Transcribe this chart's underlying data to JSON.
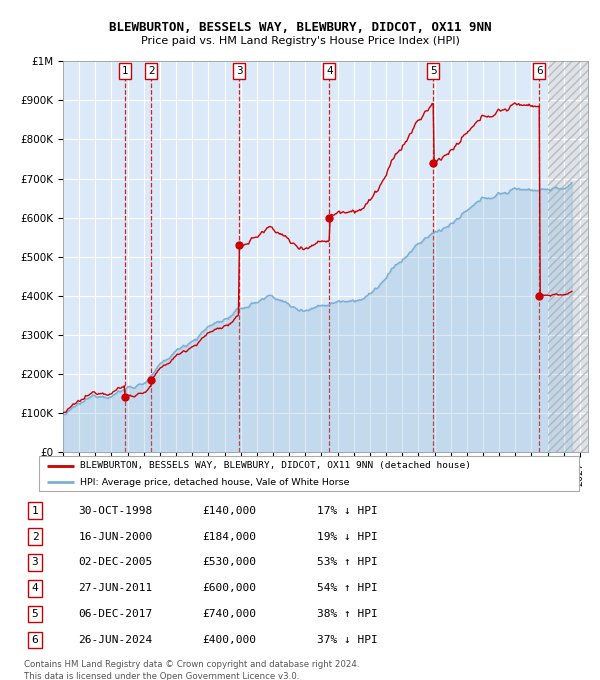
{
  "title1": "BLEWBURTON, BESSELS WAY, BLEWBURY, DIDCOT, OX11 9NN",
  "title2": "Price paid vs. HM Land Registry's House Price Index (HPI)",
  "ylim": [
    0,
    1000000
  ],
  "yticks": [
    0,
    100000,
    200000,
    300000,
    400000,
    500000,
    600000,
    700000,
    800000,
    900000,
    1000000
  ],
  "ytick_labels": [
    "£0",
    "£100K",
    "£200K",
    "£300K",
    "£400K",
    "£500K",
    "£600K",
    "£700K",
    "£800K",
    "£900K",
    "£1M"
  ],
  "xlim_start": 1995.0,
  "xlim_end": 2027.5,
  "background_color": "#dce9f8",
  "grid_color": "#ffffff",
  "sale_line_color": "#cc0000",
  "hpi_line_color": "#7bafd4",
  "vline_color": "#cc0000",
  "transactions": [
    {
      "num": 1,
      "date": 1998.83,
      "price": 140000
    },
    {
      "num": 2,
      "date": 2000.46,
      "price": 184000
    },
    {
      "num": 3,
      "date": 2005.92,
      "price": 530000
    },
    {
      "num": 4,
      "date": 2011.49,
      "price": 600000
    },
    {
      "num": 5,
      "date": 2017.92,
      "price": 740000
    },
    {
      "num": 6,
      "date": 2024.49,
      "price": 400000
    }
  ],
  "legend_line1": "BLEWBURTON, BESSELS WAY, BLEWBURY, DIDCOT, OX11 9NN (detached house)",
  "legend_line2": "HPI: Average price, detached house, Vale of White Horse",
  "footer1": "Contains HM Land Registry data © Crown copyright and database right 2024.",
  "footer2": "This data is licensed under the Open Government Licence v3.0.",
  "table_rows": [
    [
      "1",
      "30-OCT-1998",
      "£140,000",
      "17% ↓ HPI"
    ],
    [
      "2",
      "16-JUN-2000",
      "£184,000",
      "19% ↓ HPI"
    ],
    [
      "3",
      "02-DEC-2005",
      "£530,000",
      "53% ↑ HPI"
    ],
    [
      "4",
      "27-JUN-2011",
      "£600,000",
      "54% ↑ HPI"
    ],
    [
      "5",
      "06-DEC-2017",
      "£740,000",
      "38% ↑ HPI"
    ],
    [
      "6",
      "26-JUN-2024",
      "£400,000",
      "37% ↓ HPI"
    ]
  ]
}
